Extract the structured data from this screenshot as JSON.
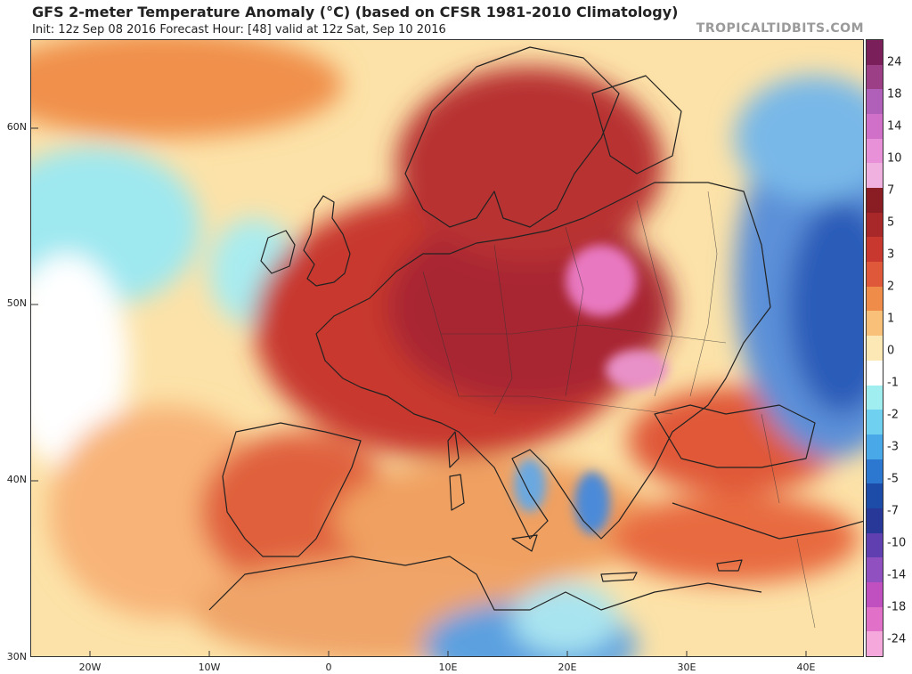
{
  "header": {
    "title": "GFS 2-meter Temperature Anomaly (°C) (based on CFSR 1981-2010 Climatology)",
    "subtitle": "Init: 12z Sep 08 2016   Forecast Hour: [48]   valid at 12z Sat, Sep 10 2016",
    "watermark": "TROPICALTIDBITS.COM"
  },
  "map": {
    "lat_labels": [
      "60N",
      "50N",
      "40N",
      "30N"
    ],
    "lon_labels": [
      "20W",
      "10W",
      "0",
      "10E",
      "20E",
      "30E",
      "40E"
    ]
  },
  "colorbar": {
    "labels": [
      "24",
      "18",
      "14",
      "10",
      "7",
      "5",
      "3",
      "2",
      "1",
      "0",
      "-1",
      "-2",
      "-3",
      "-5",
      "-7",
      "-10",
      "-14",
      "-18",
      "-24"
    ],
    "colors": [
      "#7a1f5a",
      "#9c3f86",
      "#b060b8",
      "#d070c8",
      "#e890d8",
      "#f0b0e0",
      "#8a1c24",
      "#a8282a",
      "#c8382e",
      "#e0583a",
      "#f08c4a",
      "#f8c078",
      "#fce8b4",
      "#ffffff",
      "#a0eef0",
      "#70d0f0",
      "#48a8e8",
      "#2c78d0",
      "#1c4ca8",
      "#283898",
      "#6040b0",
      "#9050c0",
      "#c050c0",
      "#e070c8",
      "#f4a8dc"
    ]
  },
  "colors": {
    "warm_core": "#a82830",
    "hot_core": "#f080d0",
    "cool_east": "#3c70c8",
    "ocean_neutral": "#fce8b4"
  }
}
